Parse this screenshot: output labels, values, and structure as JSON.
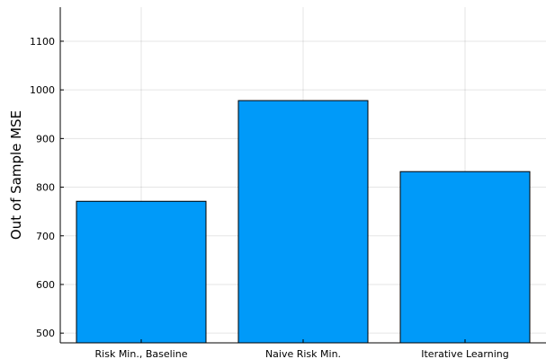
{
  "chart_data": {
    "type": "bar",
    "title": "",
    "xlabel": "",
    "ylabel": "Out of Sample MSE",
    "categories": [
      "Risk Min., Baseline",
      "Naive Risk Min.",
      "Iterative Learning"
    ],
    "values": [
      771,
      978,
      832
    ],
    "ylim": [
      480,
      1170
    ],
    "yticks": [
      500,
      600,
      700,
      800,
      900,
      1000,
      1100
    ],
    "grid": true,
    "legend": "none",
    "bar_color": "#009AF9",
    "bar_edge_color": "#000000"
  }
}
